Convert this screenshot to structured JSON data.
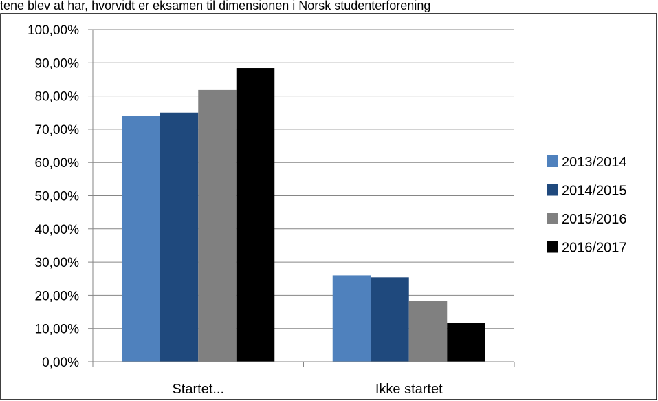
{
  "top_text": "tene blev at har, hvorvidt er eksamen til dimensionen i Norsk studenterforening",
  "chart_data": {
    "type": "bar",
    "categories": [
      "Startet...",
      "Ikke startet"
    ],
    "series": [
      {
        "name": "2013/2014",
        "values": [
          74.0,
          26.0
        ],
        "color": "#4f81bd"
      },
      {
        "name": "2014/2015",
        "values": [
          75.0,
          25.4
        ],
        "color": "#1f497d"
      },
      {
        "name": "2015/2016",
        "values": [
          81.8,
          18.4
        ],
        "color": "#808080"
      },
      {
        "name": "2016/2017",
        "values": [
          88.4,
          11.8
        ],
        "color": "#000000"
      }
    ],
    "ylim": [
      0,
      100
    ],
    "y_ticks": [
      0,
      10,
      20,
      30,
      40,
      50,
      60,
      70,
      80,
      90,
      100
    ],
    "y_tick_labels": [
      "0,00%",
      "10,00%",
      "20,00%",
      "30,00%",
      "40,00%",
      "50,00%",
      "60,00%",
      "70,00%",
      "80,00%",
      "90,00%",
      "100,00%"
    ],
    "grid": true,
    "legend_position": "right",
    "title": "",
    "xlabel": "",
    "ylabel": ""
  }
}
